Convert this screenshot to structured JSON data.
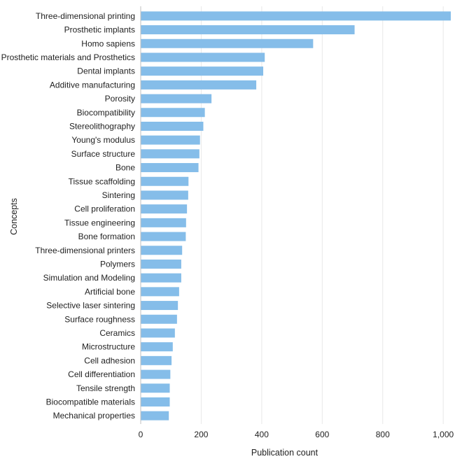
{
  "chart_data": {
    "type": "bar",
    "orientation": "horizontal",
    "xlabel": "Publication count",
    "ylabel": "Concepts",
    "xlim": [
      0,
      1025
    ],
    "xticks": [
      0,
      200,
      400,
      600,
      800,
      1000
    ],
    "xtick_labels": [
      "0",
      "200",
      "400",
      "600",
      "800",
      "1,000"
    ],
    "grid": "vertical",
    "legend": "none",
    "bar_color": "#85bde9",
    "categories": [
      "Three-dimensional printing",
      "Prosthetic implants",
      "Homo sapiens",
      "Prosthetic materials and Prosthetics",
      "Dental implants",
      "Additive manufacturing",
      "Porosity",
      "Biocompatibility",
      "Stereolithography",
      "Young's modulus",
      "Surface structure",
      "Bone",
      "Tissue scaffolding",
      "Sintering",
      "Cell proliferation",
      "Tissue engineering",
      "Bone formation",
      "Three-dimensional printers",
      "Polymers",
      "Simulation and Modeling",
      "Artificial bone",
      "Selective laser sintering",
      "Surface roughness",
      "Ceramics",
      "Microstructure",
      "Cell adhesion",
      "Cell differentiation",
      "Tensile strength",
      "Biocompatible materials",
      "Mechanical properties"
    ],
    "values": [
      1025,
      707,
      570,
      410,
      405,
      382,
      234,
      212,
      207,
      196,
      194,
      191,
      158,
      157,
      153,
      150,
      149,
      137,
      134,
      134,
      127,
      123,
      120,
      113,
      106,
      102,
      98,
      96,
      96,
      93
    ]
  }
}
